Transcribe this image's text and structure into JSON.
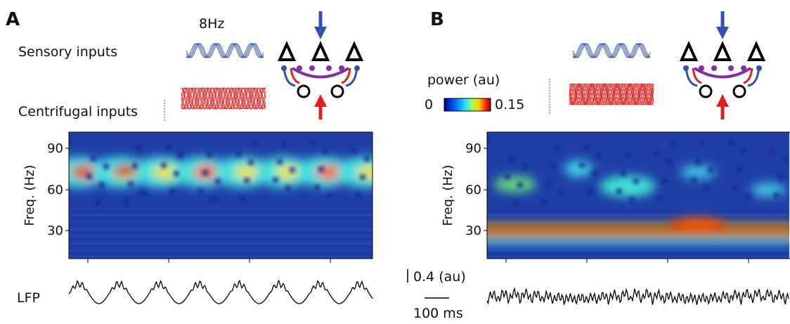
{
  "panels": [
    {
      "label": "A",
      "frequency": "8Hz",
      "sensory_inputs": "Sensory inputs",
      "centrifugal_inputs": "Centrifugal inputs",
      "y_axis_label": "Freq. (Hz)",
      "yticks": [
        "90",
        "60",
        "30"
      ],
      "trace_label": "LFP"
    },
    {
      "label": "B",
      "y_axis_label": "Freq. (Hz)",
      "yticks": [
        "90",
        "60",
        "30"
      ]
    }
  ],
  "colorbar": {
    "title": "power (au)",
    "min": "0",
    "max": "0.15"
  },
  "scalebar": {
    "amplitude": "0.4 (au)",
    "time": "100 ms"
  }
}
